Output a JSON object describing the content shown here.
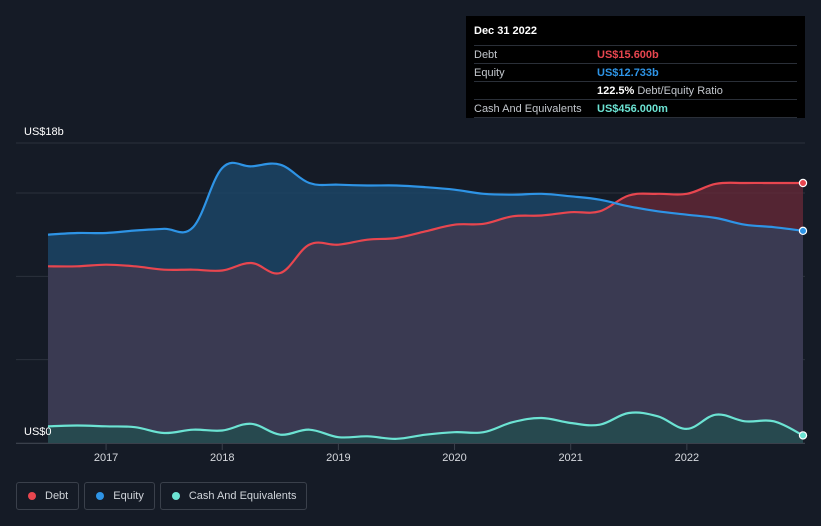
{
  "tooltip": {
    "date": "Dec 31 2022",
    "debt_label": "Debt",
    "debt_value": "US$15.600b",
    "equity_label": "Equity",
    "equity_value": "US$12.733b",
    "ratio_value": "122.5%",
    "ratio_label": "Debt/Equity Ratio",
    "cash_label": "Cash And Equivalents",
    "cash_value": "US$456.000m"
  },
  "legend": [
    {
      "label": "Debt",
      "color": "#e8464f"
    },
    {
      "label": "Equity",
      "color": "#2e94e6"
    },
    {
      "label": "Cash And Equivalents",
      "color": "#6ce3d3"
    }
  ],
  "chart_data": {
    "type": "area",
    "y_top_label": "US$18b",
    "y_bottom_label": "US$0",
    "ylim": [
      0,
      18
    ],
    "xlim": [
      2016.5,
      2023.0
    ],
    "x_ticks": [
      2017,
      2018,
      2019,
      2020,
      2021,
      2022
    ],
    "x_tick_labels": [
      "2017",
      "2018",
      "2019",
      "2020",
      "2021",
      "2022"
    ],
    "grid": true,
    "legend_position": "bottom-left",
    "series": [
      {
        "name": "Debt",
        "color": "#e8464f",
        "points": [
          [
            2016.5,
            10.6
          ],
          [
            2016.75,
            10.6
          ],
          [
            2017.0,
            10.7
          ],
          [
            2017.25,
            10.6
          ],
          [
            2017.5,
            10.4
          ],
          [
            2017.75,
            10.4
          ],
          [
            2018.0,
            10.35
          ],
          [
            2018.25,
            10.8
          ],
          [
            2018.5,
            10.2
          ],
          [
            2018.75,
            11.9
          ],
          [
            2019.0,
            11.9
          ],
          [
            2019.25,
            12.2
          ],
          [
            2019.5,
            12.3
          ],
          [
            2019.75,
            12.7
          ],
          [
            2020.0,
            13.1
          ],
          [
            2020.25,
            13.15
          ],
          [
            2020.5,
            13.6
          ],
          [
            2020.75,
            13.65
          ],
          [
            2021.0,
            13.85
          ],
          [
            2021.25,
            13.9
          ],
          [
            2021.5,
            14.85
          ],
          [
            2021.75,
            14.95
          ],
          [
            2022.0,
            14.95
          ],
          [
            2022.25,
            15.55
          ],
          [
            2022.5,
            15.6
          ],
          [
            2022.75,
            15.6
          ],
          [
            2023.0,
            15.6
          ]
        ]
      },
      {
        "name": "Equity",
        "color": "#2e94e6",
        "points": [
          [
            2016.5,
            12.5
          ],
          [
            2016.75,
            12.6
          ],
          [
            2017.0,
            12.6
          ],
          [
            2017.25,
            12.75
          ],
          [
            2017.5,
            12.85
          ],
          [
            2017.75,
            12.95
          ],
          [
            2018.0,
            16.5
          ],
          [
            2018.25,
            16.6
          ],
          [
            2018.5,
            16.7
          ],
          [
            2018.75,
            15.6
          ],
          [
            2019.0,
            15.5
          ],
          [
            2019.25,
            15.45
          ],
          [
            2019.5,
            15.45
          ],
          [
            2019.75,
            15.35
          ],
          [
            2020.0,
            15.2
          ],
          [
            2020.25,
            14.95
          ],
          [
            2020.5,
            14.9
          ],
          [
            2020.75,
            14.95
          ],
          [
            2021.0,
            14.8
          ],
          [
            2021.25,
            14.6
          ],
          [
            2021.5,
            14.2
          ],
          [
            2021.75,
            13.9
          ],
          [
            2022.0,
            13.7
          ],
          [
            2022.25,
            13.5
          ],
          [
            2022.5,
            13.1
          ],
          [
            2022.75,
            12.95
          ],
          [
            2023.0,
            12.73
          ]
        ]
      },
      {
        "name": "Cash And Equivalents",
        "color": "#6ce3d3",
        "points": [
          [
            2016.5,
            1.0
          ],
          [
            2016.75,
            1.05
          ],
          [
            2017.0,
            1.0
          ],
          [
            2017.25,
            0.95
          ],
          [
            2017.5,
            0.6
          ],
          [
            2017.75,
            0.8
          ],
          [
            2018.0,
            0.75
          ],
          [
            2018.25,
            1.15
          ],
          [
            2018.5,
            0.5
          ],
          [
            2018.75,
            0.8
          ],
          [
            2019.0,
            0.35
          ],
          [
            2019.25,
            0.4
          ],
          [
            2019.5,
            0.25
          ],
          [
            2019.75,
            0.5
          ],
          [
            2020.0,
            0.65
          ],
          [
            2020.25,
            0.65
          ],
          [
            2020.5,
            1.25
          ],
          [
            2020.75,
            1.5
          ],
          [
            2021.0,
            1.2
          ],
          [
            2021.25,
            1.1
          ],
          [
            2021.5,
            1.8
          ],
          [
            2021.75,
            1.6
          ],
          [
            2022.0,
            0.85
          ],
          [
            2022.25,
            1.7
          ],
          [
            2022.5,
            1.3
          ],
          [
            2022.75,
            1.3
          ],
          [
            2023.0,
            0.456
          ]
        ]
      }
    ]
  }
}
